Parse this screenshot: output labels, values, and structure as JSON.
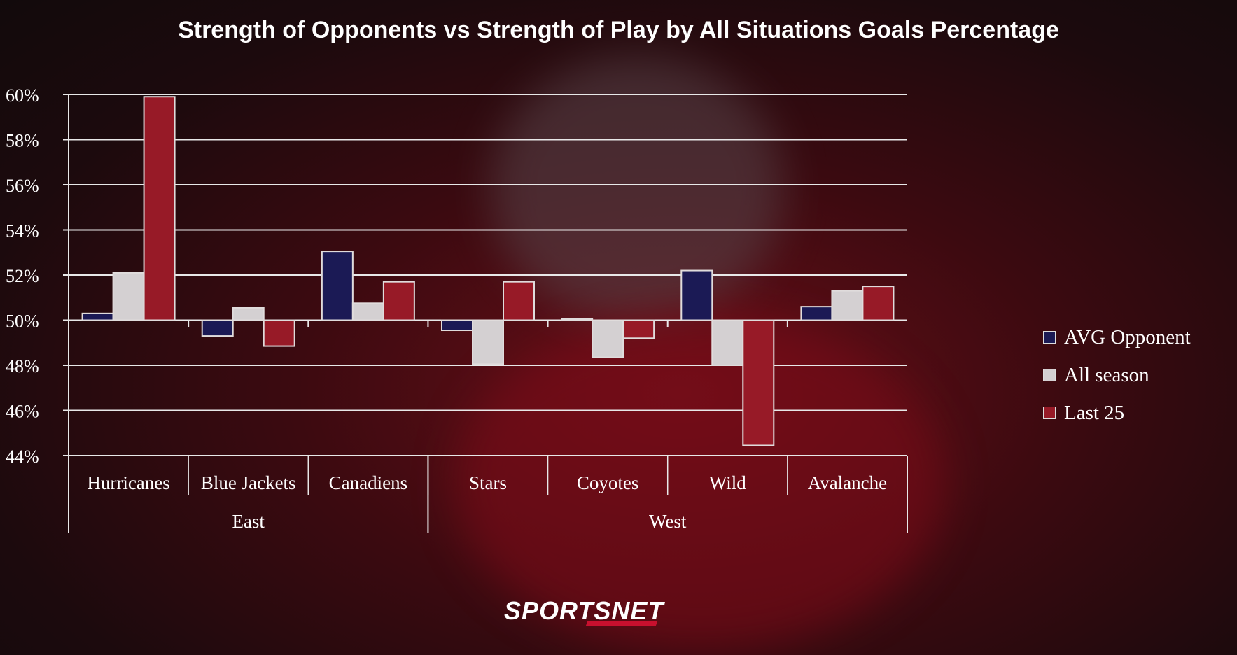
{
  "chart_data": {
    "type": "bar",
    "title": "Strength of Opponents vs Strength of Play by All Situations Goals Percentage",
    "xlabel": "",
    "ylabel": "",
    "ylim": [
      44,
      60
    ],
    "yticks": [
      44,
      46,
      48,
      50,
      52,
      54,
      56,
      58,
      60
    ],
    "ytick_labels": [
      "44%",
      "46%",
      "48%",
      "50%",
      "52%",
      "54%",
      "56%",
      "58%",
      "60%"
    ],
    "baseline": 50,
    "grid": true,
    "categories": [
      "Hurricanes",
      "Blue Jackets",
      "Canadiens",
      "Stars",
      "Coyotes",
      "Wild",
      "Avalanche"
    ],
    "groups": [
      {
        "label": "East",
        "count": 3
      },
      {
        "label": "West",
        "count": 4
      }
    ],
    "series": [
      {
        "name": "AVG Opponent",
        "color": "#1b1a55",
        "values": [
          50.3,
          49.3,
          53.05,
          49.55,
          50.05,
          52.2,
          50.6
        ]
      },
      {
        "name": "All season",
        "color": "#d4d0d2",
        "values": [
          52.1,
          50.55,
          50.75,
          48.05,
          48.35,
          48.0,
          51.3
        ]
      },
      {
        "name": "Last 25",
        "color": "#971a27",
        "values": [
          59.9,
          48.85,
          51.7,
          51.7,
          49.2,
          44.45,
          51.5
        ]
      }
    ],
    "legend_position": "right"
  },
  "branding": {
    "logo": "SPORTSNET"
  }
}
